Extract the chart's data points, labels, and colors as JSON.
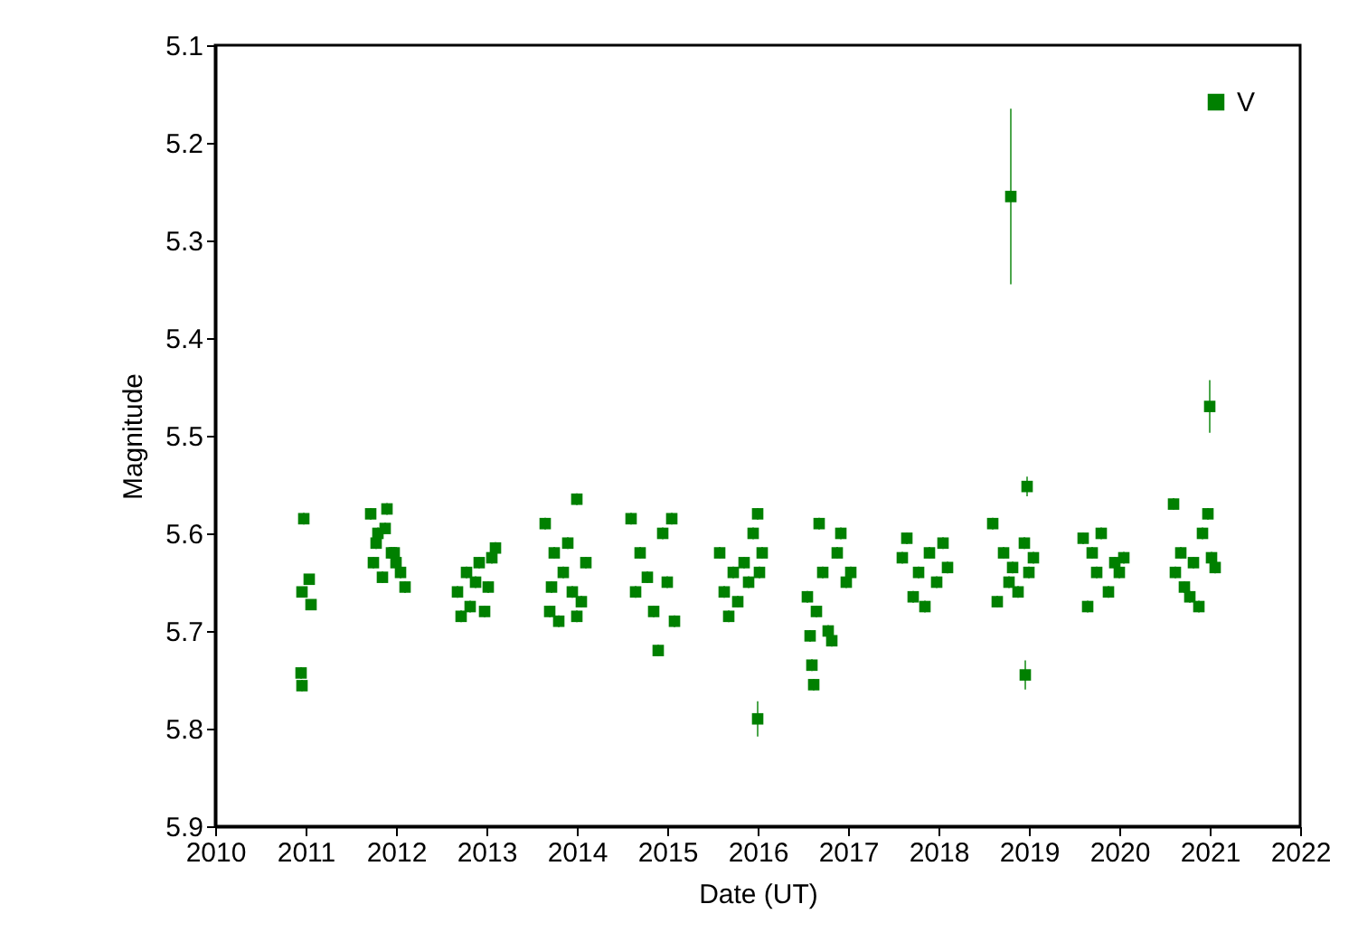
{
  "chart_data": {
    "type": "scatter",
    "xlabel": "Date (UT)",
    "ylabel": "Magnitude",
    "xlim": [
      2010,
      2022
    ],
    "xticks": [
      2010,
      2011,
      2012,
      2013,
      2014,
      2015,
      2016,
      2017,
      2018,
      2019,
      2020,
      2021,
      2022
    ],
    "ylim": [
      5.9,
      5.1
    ],
    "yticks": [
      5.1,
      5.2,
      5.3,
      5.4,
      5.5,
      5.6,
      5.7,
      5.8,
      5.9
    ],
    "grid": false,
    "legend": "top right",
    "marker": "square",
    "series": [
      {
        "name": "V",
        "color": "#008000",
        "x": [
          2010.98,
          2010.96,
          2011.04,
          2011.06,
          2010.95,
          2010.96,
          2011.72,
          2011.75,
          2011.8,
          2011.85,
          2011.9,
          2011.95,
          2012.0,
          2012.05,
          2012.1,
          2011.78,
          2011.88,
          2011.98,
          2012.68,
          2012.72,
          2012.78,
          2012.82,
          2012.88,
          2012.92,
          2012.98,
          2013.02,
          2013.06,
          2013.1,
          2013.65,
          2013.7,
          2013.75,
          2013.8,
          2013.85,
          2013.9,
          2013.95,
          2014.0,
          2014.05,
          2014.1,
          2014.0,
          2013.72,
          2014.6,
          2014.65,
          2014.7,
          2014.78,
          2014.85,
          2014.9,
          2014.95,
          2015.0,
          2015.05,
          2015.08,
          2015.58,
          2015.63,
          2015.68,
          2015.73,
          2015.78,
          2015.85,
          2015.9,
          2015.95,
          2016.0,
          2016.02,
          2016.05,
          2016.0,
          2016.55,
          2016.6,
          2016.62,
          2016.68,
          2016.72,
          2016.78,
          2016.82,
          2016.88,
          2016.92,
          2016.98,
          2017.03,
          2016.65,
          2016.58,
          2017.6,
          2017.65,
          2017.72,
          2017.78,
          2017.85,
          2017.9,
          2017.98,
          2018.05,
          2018.1,
          2018.6,
          2018.65,
          2018.72,
          2018.78,
          2018.82,
          2018.88,
          2018.95,
          2019.0,
          2019.05,
          2018.8,
          2018.98,
          2018.96,
          2019.6,
          2019.65,
          2019.7,
          2019.75,
          2019.8,
          2019.88,
          2019.95,
          2020.0,
          2020.05,
          2020.6,
          2020.62,
          2020.68,
          2020.72,
          2020.78,
          2020.82,
          2020.88,
          2020.92,
          2020.98,
          2021.02,
          2021.06,
          2021.0
        ],
        "values": [
          5.585,
          5.66,
          5.647,
          5.673,
          5.743,
          5.756,
          5.58,
          5.63,
          5.6,
          5.645,
          5.575,
          5.62,
          5.63,
          5.64,
          5.655,
          5.61,
          5.595,
          5.62,
          5.66,
          5.685,
          5.64,
          5.675,
          5.65,
          5.63,
          5.68,
          5.655,
          5.625,
          5.615,
          5.59,
          5.68,
          5.62,
          5.69,
          5.64,
          5.61,
          5.66,
          5.565,
          5.67,
          5.63,
          5.685,
          5.655,
          5.585,
          5.66,
          5.62,
          5.645,
          5.68,
          5.72,
          5.6,
          5.65,
          5.585,
          5.69,
          5.62,
          5.66,
          5.685,
          5.64,
          5.67,
          5.63,
          5.65,
          5.6,
          5.58,
          5.64,
          5.62,
          5.79,
          5.665,
          5.735,
          5.755,
          5.59,
          5.64,
          5.7,
          5.71,
          5.62,
          5.6,
          5.65,
          5.64,
          5.68,
          5.705,
          5.625,
          5.605,
          5.665,
          5.64,
          5.675,
          5.62,
          5.65,
          5.61,
          5.635,
          5.59,
          5.67,
          5.62,
          5.65,
          5.635,
          5.66,
          5.61,
          5.64,
          5.625,
          5.255,
          5.552,
          5.745,
          5.605,
          5.675,
          5.62,
          5.64,
          5.6,
          5.66,
          5.63,
          5.64,
          5.625,
          5.57,
          5.64,
          5.62,
          5.655,
          5.665,
          5.63,
          5.675,
          5.6,
          5.58,
          5.625,
          5.635,
          5.47
        ],
        "errors": [
          0.006,
          0.005,
          0.005,
          0.005,
          0.006,
          0.006,
          0.006,
          0.006,
          0.006,
          0.006,
          0.006,
          0.006,
          0.006,
          0.006,
          0.006,
          0.006,
          0.006,
          0.006,
          0.006,
          0.006,
          0.006,
          0.006,
          0.006,
          0.006,
          0.006,
          0.006,
          0.006,
          0.006,
          0.006,
          0.006,
          0.006,
          0.006,
          0.006,
          0.006,
          0.006,
          0.006,
          0.006,
          0.006,
          0.006,
          0.006,
          0.006,
          0.006,
          0.006,
          0.006,
          0.006,
          0.006,
          0.006,
          0.006,
          0.006,
          0.006,
          0.006,
          0.006,
          0.006,
          0.006,
          0.006,
          0.006,
          0.006,
          0.006,
          0.006,
          0.006,
          0.006,
          0.018,
          0.006,
          0.006,
          0.006,
          0.006,
          0.006,
          0.006,
          0.006,
          0.006,
          0.006,
          0.006,
          0.006,
          0.006,
          0.006,
          0.006,
          0.006,
          0.006,
          0.006,
          0.006,
          0.006,
          0.006,
          0.006,
          0.006,
          0.006,
          0.006,
          0.006,
          0.006,
          0.006,
          0.006,
          0.006,
          0.006,
          0.006,
          0.09,
          0.01,
          0.015,
          0.006,
          0.006,
          0.006,
          0.006,
          0.006,
          0.006,
          0.006,
          0.006,
          0.006,
          0.006,
          0.006,
          0.006,
          0.006,
          0.006,
          0.006,
          0.006,
          0.006,
          0.006,
          0.006,
          0.006,
          0.027
        ]
      }
    ]
  }
}
